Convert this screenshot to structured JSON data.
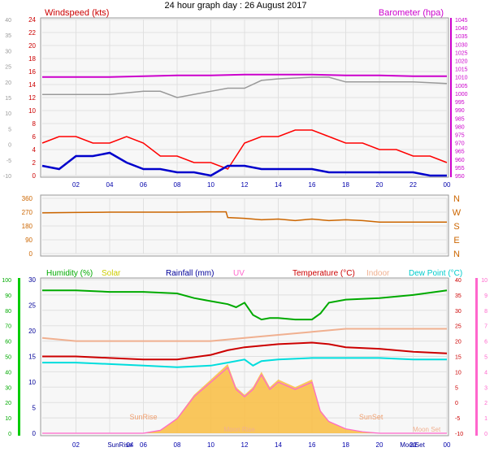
{
  "page_title": "24 hour graph day : 26 August 2017",
  "colors": {
    "wind": "#ff0000",
    "gust": "#0000cc",
    "baro": "#cc00cc",
    "temp_line_grey": "#999999",
    "dir": "#cc6600",
    "humidity": "#00aa00",
    "solar": "#cccc00",
    "solar_fill": "#f8c04a",
    "rain": "#000099",
    "uv": "#ff66cc",
    "temp": "#cc0000",
    "indoor": "#f0b090",
    "dew": "#00dddd",
    "grid": "#e0e0e0",
    "panel": "#f4f4f4"
  },
  "chart_data": [
    {
      "type": "line",
      "left_label": "Windspeed (kts)",
      "right_label": "Barometer (hpa)",
      "xticks": [
        "02",
        "04",
        "06",
        "08",
        "10",
        "12",
        "14",
        "16",
        "18",
        "20",
        "22",
        "00"
      ],
      "left_ticks": [
        "24",
        "22",
        "20",
        "18",
        "16",
        "14",
        "12",
        "10",
        "8",
        "6",
        "4",
        "2",
        "0"
      ],
      "outer_left_ticks": [
        "40",
        "35",
        "30",
        "25",
        "20",
        "15",
        "10",
        "5",
        "0",
        "-5",
        "-10"
      ],
      "right_ticks": [
        "1045",
        "1040",
        "1035",
        "1030",
        "1025",
        "1020",
        "1015",
        "1010",
        "1005",
        "1000",
        "995",
        "990",
        "985",
        "980",
        "975",
        "970",
        "965",
        "960",
        "955",
        "950"
      ],
      "series": [
        {
          "x": [
            0,
            1,
            2,
            3,
            4,
            5,
            6,
            7,
            8,
            9,
            10,
            11,
            12,
            13,
            14,
            15,
            16,
            17,
            18,
            19,
            20,
            21,
            22,
            23,
            24
          ],
          "values": [
            5,
            6,
            6,
            5,
            5,
            6,
            5,
            3,
            3,
            2,
            2,
            1,
            5,
            6,
            6,
            7,
            7,
            6,
            5,
            5,
            4,
            4,
            3,
            3,
            2
          ]
        },
        {
          "x": [
            0,
            1,
            2,
            3,
            4,
            5,
            6,
            7,
            8,
            9,
            10,
            11,
            12,
            13,
            14,
            15,
            16,
            17,
            18,
            19,
            20,
            21,
            22,
            23,
            24
          ],
          "values": [
            1.5,
            1,
            3,
            3,
            3.5,
            2,
            1,
            1,
            0.5,
            0.5,
            0,
            1.5,
            1.5,
            1,
            1,
            1,
            1,
            0.5,
            0.5,
            0.5,
            0.5,
            0.5,
            0.5,
            0,
            0
          ]
        },
        {
          "x": [
            0,
            2,
            4,
            6,
            8,
            10,
            12,
            14,
            16,
            18,
            20,
            22,
            24
          ],
          "values": [
            1010,
            1010,
            1010,
            1010.5,
            1011,
            1011,
            1011.5,
            1011.5,
            1011.5,
            1011,
            1011,
            1010.5,
            1010.5
          ]
        },
        {
          "x": [
            0,
            2,
            4,
            6,
            7,
            8,
            10,
            11,
            12,
            13,
            14,
            16,
            17,
            18,
            20,
            22,
            24
          ],
          "values": [
            16,
            16,
            16,
            17,
            17,
            15,
            17,
            18,
            18,
            20.5,
            21,
            21.5,
            21.5,
            20,
            20,
            20,
            19.5
          ]
        }
      ]
    },
    {
      "type": "line",
      "left_ticks": [
        "360",
        "270",
        "180",
        "90",
        "0"
      ],
      "right_labels": [
        "N",
        "W",
        "S",
        "E",
        "N"
      ],
      "series": [
        {
          "x": [
            0,
            2,
            4,
            6,
            8,
            10,
            10.9,
            11,
            12,
            13,
            14,
            15,
            16,
            17,
            18,
            19,
            20,
            22,
            24
          ],
          "values": [
            265,
            268,
            270,
            270,
            270,
            272,
            272,
            235,
            230,
            220,
            225,
            215,
            225,
            215,
            220,
            215,
            205,
            205,
            205
          ]
        }
      ]
    },
    {
      "type": "area",
      "labels": [
        "Humidity (%)",
        "Solar",
        "Rainfall (mm)",
        "UV",
        "Temperature (°C)",
        "Indoor",
        "Dew Point (°C)"
      ],
      "xticks": [
        "02",
        "SunRise",
        "04",
        "06",
        "08",
        "10",
        "12",
        "14",
        "16",
        "18",
        "20",
        "Moon",
        "Set",
        "22",
        "00"
      ],
      "humidity_ticks": [
        "100",
        "90",
        "80",
        "70",
        "60",
        "50",
        "40",
        "30",
        "20",
        "10",
        "0"
      ],
      "rain_ticks": [
        "30",
        "25",
        "20",
        "15",
        "10",
        "5",
        "0"
      ],
      "temp_ticks": [
        "40",
        "35",
        "30",
        "25",
        "20",
        "15",
        "10",
        "5",
        "0",
        "-5",
        "-10"
      ],
      "uv_ticks": [
        "10",
        "9",
        "8",
        "7",
        "6",
        "5",
        "4",
        "3",
        "2",
        "1",
        "0"
      ],
      "annotations": [
        "SunRise",
        "SunSet",
        "Moon Rise",
        "Moon Set"
      ],
      "series": [
        {
          "x": [
            0,
            2,
            4,
            6,
            8,
            9,
            10,
            11,
            11.5,
            12,
            12.5,
            13,
            13.5,
            14,
            15,
            16,
            16.5,
            17,
            18,
            20,
            22,
            24
          ],
          "values": [
            93,
            93,
            92,
            92,
            91,
            88,
            86,
            84,
            82,
            85,
            77,
            74,
            75,
            75,
            74,
            74,
            78,
            85,
            87,
            88,
            90,
            93
          ]
        },
        {
          "x": [
            0,
            2,
            4,
            6,
            8,
            10,
            12,
            14,
            16,
            18,
            20,
            22,
            24
          ],
          "values": [
            21,
            20,
            20,
            20,
            20,
            20,
            21,
            22,
            23,
            24,
            24,
            24,
            24
          ]
        },
        {
          "x": [
            0,
            2,
            4,
            6,
            8,
            10,
            11,
            12,
            14,
            16,
            17,
            18,
            20,
            22,
            24
          ],
          "values": [
            15,
            15,
            14.5,
            14,
            14,
            15.5,
            17,
            18,
            19,
            19.5,
            19,
            18,
            17.5,
            16.5,
            16
          ]
        },
        {
          "x": [
            0,
            2,
            4,
            6,
            8,
            10,
            11,
            12,
            12.5,
            13,
            14,
            16,
            18,
            20,
            22,
            24
          ],
          "values": [
            13,
            13,
            12.5,
            12,
            11.5,
            12,
            13,
            14,
            12,
            13.5,
            14,
            14.5,
            14.5,
            14.5,
            14,
            14
          ]
        },
        {
          "x": [
            0,
            6,
            7,
            8,
            9,
            10,
            11,
            11.5,
            12,
            12.5,
            13,
            13.5,
            14,
            15,
            16,
            16.5,
            17,
            18,
            19,
            20,
            24
          ],
          "values": [
            0,
            0,
            0.2,
            1,
            2.5,
            3.5,
            4.5,
            3,
            2.5,
            3,
            4,
            3,
            3.5,
            3,
            3.5,
            1.5,
            0.8,
            0.3,
            0.1,
            0,
            0
          ]
        }
      ]
    }
  ]
}
